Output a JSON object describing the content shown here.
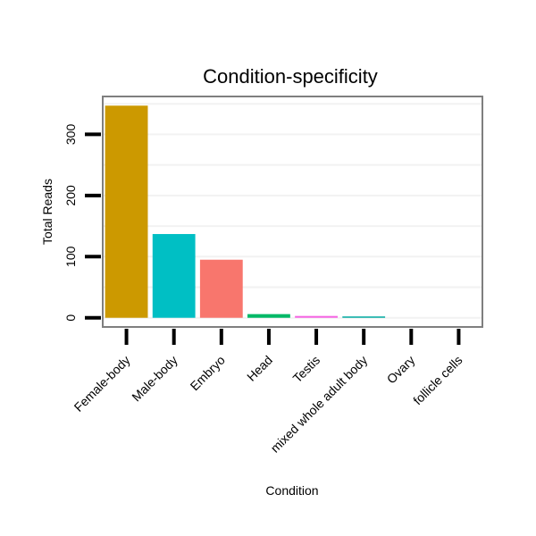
{
  "chart_data": {
    "type": "bar",
    "title": "Condition-specificity",
    "xlabel": "Condition",
    "ylabel": "Total Reads",
    "categories": [
      "Female-body",
      "Male-body",
      "Embryo",
      "Head",
      "Testis",
      "mixed whole adult body",
      "Ovary",
      "follicle cells"
    ],
    "values": [
      347,
      137,
      95,
      6,
      3,
      2,
      0,
      0
    ],
    "colors": [
      "#cc9900",
      "#00bfc4",
      "#f8766d",
      "#00b866",
      "#f564e3",
      "#00a9a0",
      "#999999",
      "#999999"
    ],
    "yticks": [
      0,
      100,
      200,
      300
    ],
    "ylim": [
      -15,
      362
    ],
    "grid": true,
    "legend": "none"
  }
}
